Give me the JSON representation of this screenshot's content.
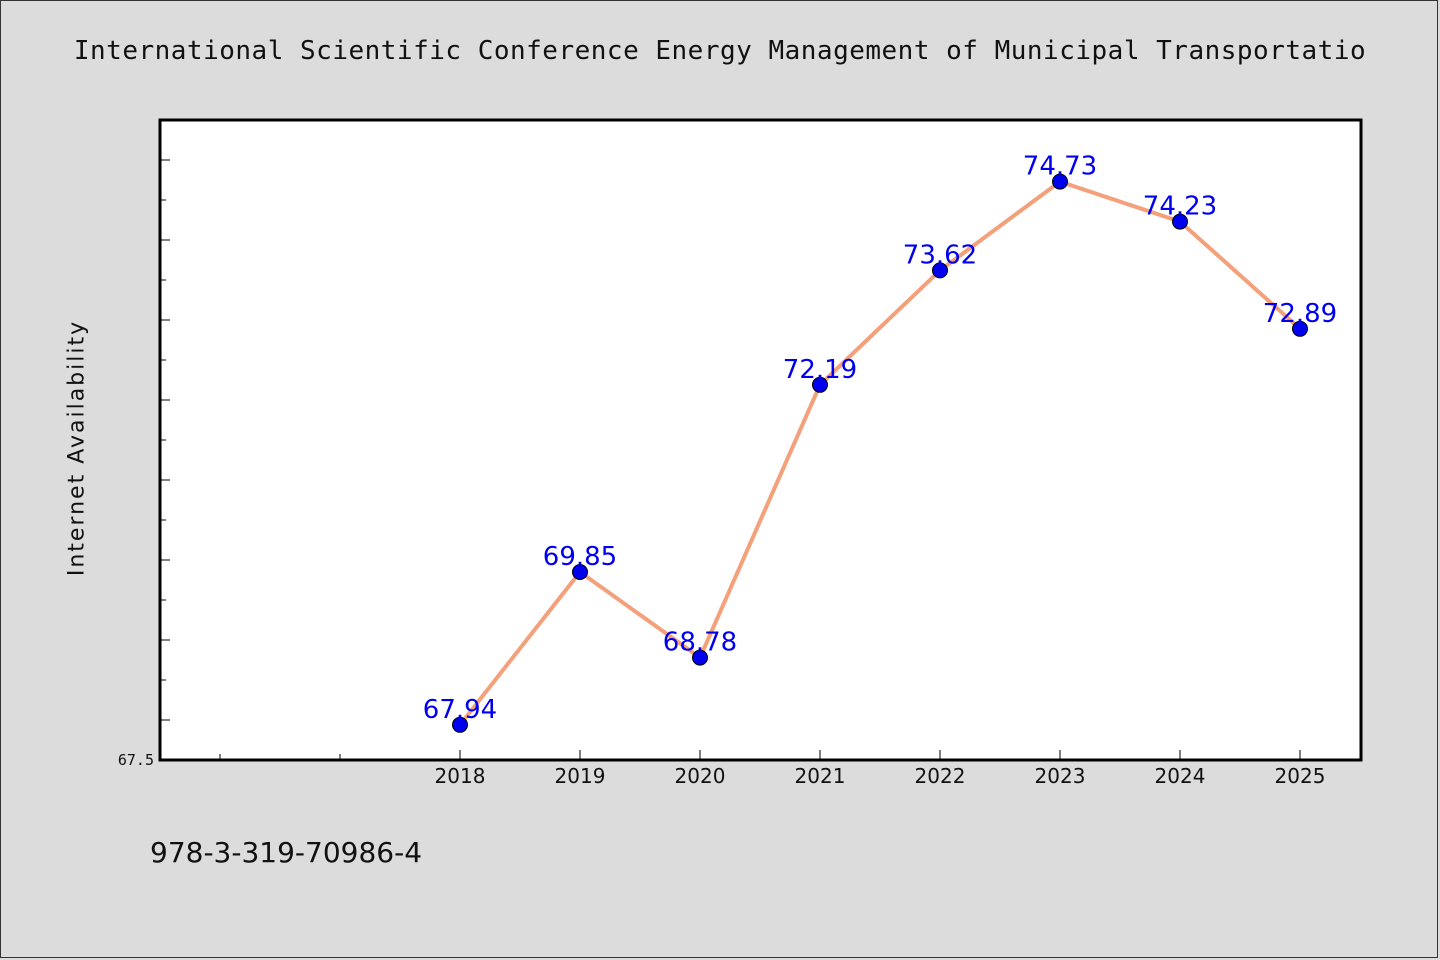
{
  "chart_data": {
    "type": "line",
    "title": "International Scientific Conference Energy Management of Municipal Transportatio",
    "xlabel": "",
    "ylabel": "Internet Availability",
    "categories": [
      "2018",
      "2019",
      "2020",
      "2021",
      "2022",
      "2023",
      "2024",
      "2025"
    ],
    "series": [
      {
        "values": [
          67.94,
          69.85,
          68.78,
          72.19,
          73.62,
          74.73,
          74.23,
          72.89
        ],
        "labels": [
          "67.94",
          "69.85",
          "68.78",
          "72.19",
          "73.62",
          "74.73",
          "74.23",
          "72.89"
        ]
      }
    ],
    "ylim": [
      67.5,
      75.5
    ],
    "ytick_labels": [
      "67.5"
    ],
    "grid": false,
    "line_color": "#f4a07a",
    "marker_color": "#0000ee",
    "label_color": "#0000ee"
  },
  "footer": {
    "identifier": "978-3-319-70986-4"
  }
}
